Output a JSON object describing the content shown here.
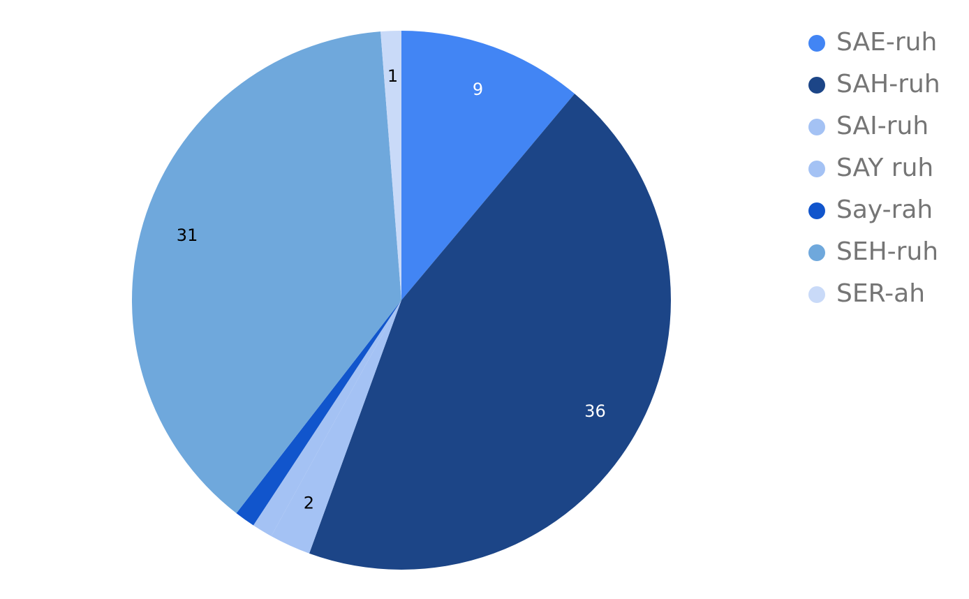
{
  "chart_data": {
    "type": "pie",
    "categories": [
      "SAE-ruh",
      "SAH-ruh",
      "SAI-ruh",
      "SAY ruh",
      "Say-rah",
      "SEH-ruh",
      "SER-ah"
    ],
    "values": [
      9,
      36,
      2,
      1,
      1,
      31,
      1
    ],
    "value_labels": [
      "9",
      "36",
      "2",
      null,
      null,
      "31",
      "1"
    ],
    "colors": [
      "#4285f4",
      "#1c4587",
      "#a4c2f4",
      "#a4c2f4",
      "#1155cc",
      "#6fa8dc",
      "#c9daf8"
    ],
    "legend": "right"
  }
}
